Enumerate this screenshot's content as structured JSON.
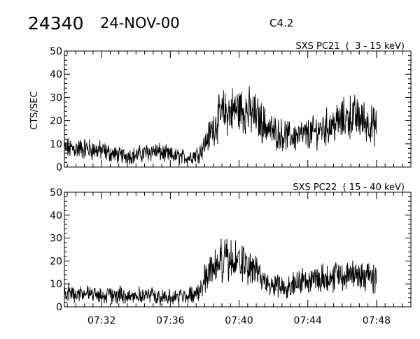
{
  "header": {
    "event_id": "24340",
    "date": "24-NOV-00",
    "flare_class": "C4.2"
  },
  "chart_data": [
    {
      "type": "line",
      "title": "SXS PC21  (  3 - 15 keV)",
      "ylabel": "CTS/SEC",
      "xlabel": "",
      "ylim": [
        0,
        50
      ],
      "xlim": [
        "07:29:50",
        "07:50:00"
      ],
      "y_ticks": [
        "0",
        "10",
        "20",
        "30",
        "40",
        "50"
      ],
      "x_ticks": [
        "07:32",
        "07:36",
        "07:40",
        "07:44",
        "07:48"
      ],
      "x_tick_labels_shown": false,
      "grid": false,
      "series": [
        {
          "x": [
            "07:29:50",
            "07:31:00",
            "07:32:00",
            "07:33:00",
            "07:34:00",
            "07:35:00",
            "07:36:00",
            "07:37:00",
            "07:37:40",
            "07:38:00",
            "07:38:30",
            "07:39:00",
            "07:39:30",
            "07:40:00",
            "07:40:30",
            "07:41:00",
            "07:41:30",
            "07:42:00",
            "07:43:00",
            "07:44:00",
            "07:45:00",
            "07:46:00",
            "07:46:30",
            "07:47:00",
            "07:47:30",
            "07:48:00"
          ],
          "values": [
            8,
            8,
            7,
            5,
            5,
            7,
            5,
            4,
            6,
            10,
            17,
            23,
            24,
            25,
            24,
            22,
            18,
            15,
            13,
            14,
            17,
            20,
            22,
            21,
            19,
            17
          ]
        }
      ]
    },
    {
      "type": "line",
      "title": "SXS PC22  ( 15 - 40 keV)",
      "ylabel": "",
      "xlabel": "",
      "ylim": [
        0,
        50
      ],
      "xlim": [
        "07:29:50",
        "07:50:00"
      ],
      "y_ticks": [
        "0",
        "10",
        "20",
        "30",
        "40",
        "50"
      ],
      "x_ticks": [
        "07:32",
        "07:36",
        "07:40",
        "07:44",
        "07:48"
      ],
      "x_tick_labels_shown": true,
      "grid": false,
      "series": [
        {
          "x": [
            "07:29:50",
            "07:31:00",
            "07:32:00",
            "07:33:00",
            "07:34:00",
            "07:35:00",
            "07:36:00",
            "07:37:00",
            "07:37:40",
            "07:38:00",
            "07:38:30",
            "07:39:00",
            "07:39:30",
            "07:40:00",
            "07:40:30",
            "07:41:00",
            "07:41:30",
            "07:42:00",
            "07:43:00",
            "07:44:00",
            "07:45:00",
            "07:46:00",
            "07:46:30",
            "07:47:00",
            "07:47:30",
            "07:48:00"
          ],
          "values": [
            6,
            6,
            5,
            5,
            5,
            5,
            4,
            5,
            6,
            13,
            18,
            20,
            20,
            19,
            18,
            15,
            11,
            9,
            10,
            12,
            13,
            14,
            14,
            14,
            13,
            13
          ]
        }
      ]
    }
  ]
}
